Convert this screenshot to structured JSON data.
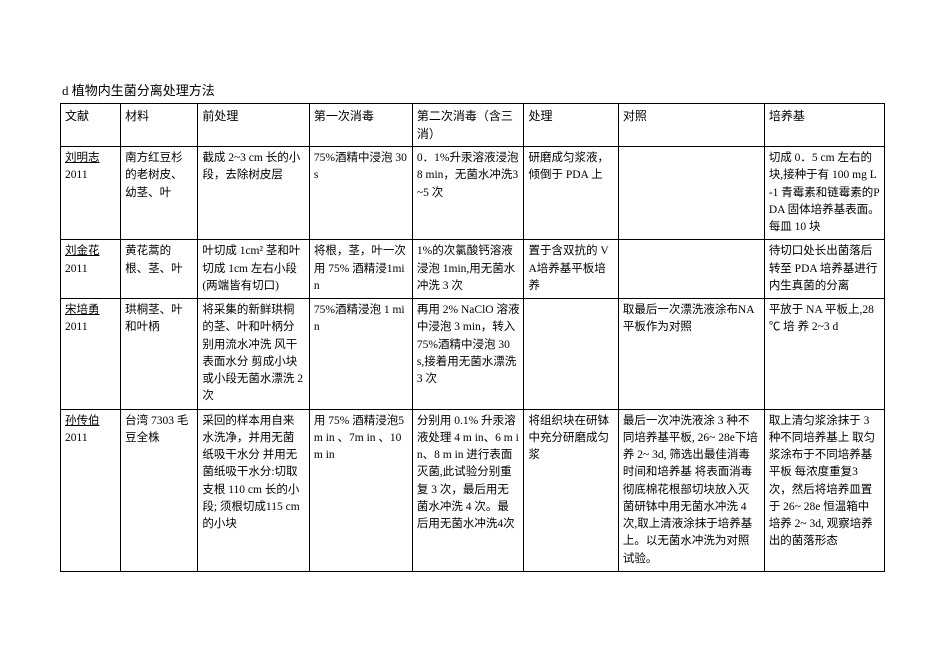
{
  "title": "d 植物内生菌分离处理方法",
  "headers": [
    "文献",
    "材料",
    "前处理",
    "第一次消毒",
    "第二次消毒（含三消）",
    "处理",
    "对照",
    "培养基"
  ],
  "rows": [
    {
      "ref_name": "刘明志",
      "ref_year": "2011",
      "material": "南方红豆杉的老树皮、幼茎、叶",
      "pretreatment": "截成 2~3 cm 长的小段，去除树皮层",
      "disinfect1": "75%酒精中浸泡 30 s",
      "disinfect2": "0．1%升汞溶液浸泡 8 min，无菌水冲洗3~5 次",
      "process": "研磨成匀浆液，倾倒于 PDA 上",
      "control": "",
      "medium": "切成 0．5 cm 左右的块,接种于有 100 mg L-1 青霉素和链霉素的PDA 固体培养基表面。每皿 10 块"
    },
    {
      "ref_name": "刘金花",
      "ref_year": "2011",
      "material": "黄花蒿的根、茎、叶",
      "pretreatment": "叶切成 1cm² 茎和叶切成 1cm 左右小段(两端皆有切口)",
      "disinfect1": "将根，茎，叶一次用 75% 酒精浸1min",
      "disinfect2": "1%的次氯酸钙溶液浸泡 1min,用无菌水冲洗 3 次",
      "process": "置于含双抗的 VA培养基平板培养",
      "control": "",
      "medium": "待切口处长出菌落后转至 PDA 培养基进行内生真菌的分离"
    },
    {
      "ref_name": "宋培勇",
      "ref_year": "2011",
      "material": "珙桐茎、叶和叶柄",
      "pretreatment": "将采集的新鲜珙桐的茎、叶和叶柄分别用流水冲洗 风干表面水分 剪成小块或小段无菌水漂洗 2 次",
      "disinfect1": "75%酒精浸泡 1 min",
      "disinfect2": "再用 2% NaClO 溶液中浸泡 3 min，转入 75%酒精中浸泡 30 s,接着用无菌水漂洗3 次",
      "process": "",
      "control": "取最后一次漂洗液涂布NA 平板作为对照",
      "medium": "平放于 NA 平板上,28 ℃ 培 养 2~3 d"
    },
    {
      "ref_name": "孙传伯",
      "ref_year": "2011",
      "material": "台湾 7303 毛豆全株",
      "pretreatment": "采回的样本用自来水洗净，并用无菌纸吸干水分 并用无菌纸吸干水分:切取支根 110 cm 长的小段; 须根切成115 cm 的小块",
      "disinfect1": "用 75% 酒精浸泡5m in 、7m in 、10m in",
      "disinfect2": "分别用 0.1% 升汞溶液处理 4 m in、6 m in、8 m in 进行表面灭菌,此试验分别重复 3 次，最后用无菌水冲洗 4 次。最后用无菌水冲洗4次",
      "process": "将组织块在研钵中充分研磨成匀浆",
      "control": "最后一次冲洗液涂 3 种不同培养基平板, 26~ 28e下培养 2~ 3d, 筛选出最佳消毒时间和培养基 将表面消毒彻底棉花根部切块放入灭菌研钵中用无菌水冲洗 4 次,取上清液涂抹于培养基上。以无菌水冲洗为对照试验。",
      "medium": "取上清匀浆涂抹于 3 种不同培养基上 取匀浆涂布于不同培养基平板 每浓度重复3 次，然后将培养皿置于 26~ 28e 恒温箱中培养 2~ 3d, 观察培养出的菌落形态"
    }
  ]
}
